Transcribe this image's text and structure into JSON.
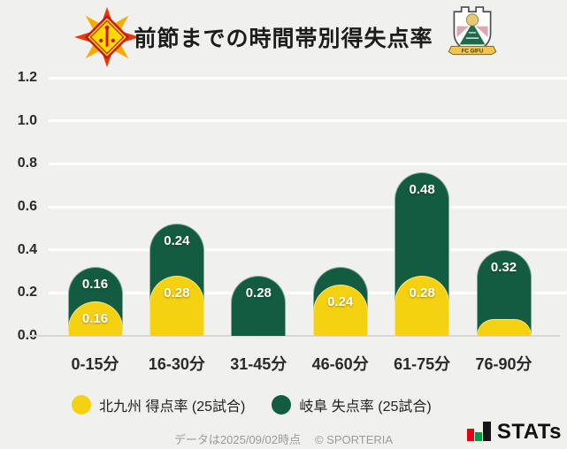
{
  "header": {
    "title": "前節までの時間帯別得失点率"
  },
  "logos": {
    "home_icon": "giravanz-kitakyushu-crest",
    "away_icon": "fc-gifu-crest",
    "away_banner_text": "FC GIFU"
  },
  "chart_data": {
    "type": "bar",
    "stacked": true,
    "title": "前節までの時間帯別得失点率",
    "categories": [
      "0-15分",
      "16-30分",
      "31-45分",
      "46-60分",
      "61-75分",
      "76-90分"
    ],
    "series": [
      {
        "name": "北九州 得点率 (25試合)",
        "color": "#F5D211",
        "values": [
          0.16,
          0.28,
          0,
          0.24,
          0.28,
          0.08
        ],
        "labels": [
          "0.16",
          "0.28",
          "",
          "0.24",
          "0.28",
          ""
        ]
      },
      {
        "name": "岐阜 失点率 (25試合)",
        "color": "#135B41",
        "values": [
          0.16,
          0.24,
          0.28,
          0.08,
          0.48,
          0.32
        ],
        "labels": [
          "0.16",
          "0.24",
          "0.28",
          "",
          "0.48",
          "0.32"
        ]
      }
    ],
    "ylim": [
      0,
      1.2
    ],
    "yticks": [
      "0.0",
      "0.2",
      "0.4",
      "0.6",
      "0.8",
      "1.0",
      "1.2"
    ],
    "grid": true,
    "legend_position": "bottom"
  },
  "footer": {
    "note": "データは2025/09/02時点",
    "copyright": "© SPORTERIA",
    "brand": "STATs"
  }
}
